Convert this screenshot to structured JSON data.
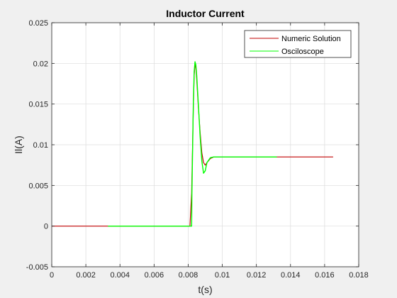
{
  "chart_data": {
    "type": "line",
    "title": "Inductor Current",
    "xlabel": "t(s)",
    "ylabel": "Il(A)",
    "xlim": [
      0,
      0.018
    ],
    "ylim": [
      -0.005,
      0.025
    ],
    "xticks": [
      "0",
      "0.002",
      "0.004",
      "0.006",
      "0.008",
      "0.01",
      "0.012",
      "0.014",
      "0.016",
      "0.018"
    ],
    "yticks": [
      "-0.005",
      "0",
      "0.005",
      "0.01",
      "0.015",
      "0.02",
      "0.025"
    ],
    "grid": true,
    "legend_position": "top-right",
    "series": [
      {
        "name": "Numeric Solution",
        "color": "#c00000",
        "x": [
          0,
          0.0081,
          0.0082,
          0.0083,
          0.00835,
          0.0084,
          0.00845,
          0.0085,
          0.0086,
          0.0087,
          0.0088,
          0.0089,
          0.009,
          0.0091,
          0.0093,
          0.0095,
          0.01,
          0.011,
          0.013,
          0.0165
        ],
        "y": [
          0,
          0,
          0.004,
          0.0145,
          0.0185,
          0.0198,
          0.0195,
          0.018,
          0.0145,
          0.0115,
          0.009,
          0.0078,
          0.0075,
          0.0078,
          0.0083,
          0.0085,
          0.0085,
          0.0085,
          0.0085,
          0.0085
        ]
      },
      {
        "name": "Osciloscope",
        "color": "#00ff00",
        "x": [
          0.0033,
          0.0082,
          0.00822,
          0.0083,
          0.00835,
          0.0084,
          0.00845,
          0.0085,
          0.0086,
          0.0087,
          0.0088,
          0.0089,
          0.009,
          0.0091,
          0.0093,
          0.0095,
          0.01,
          0.011,
          0.012,
          0.0132
        ],
        "y": [
          0,
          0,
          0.004,
          0.015,
          0.019,
          0.0202,
          0.0198,
          0.0185,
          0.0148,
          0.011,
          0.008,
          0.0065,
          0.0068,
          0.0078,
          0.0084,
          0.0085,
          0.0085,
          0.0085,
          0.0085,
          0.0085
        ]
      }
    ]
  }
}
